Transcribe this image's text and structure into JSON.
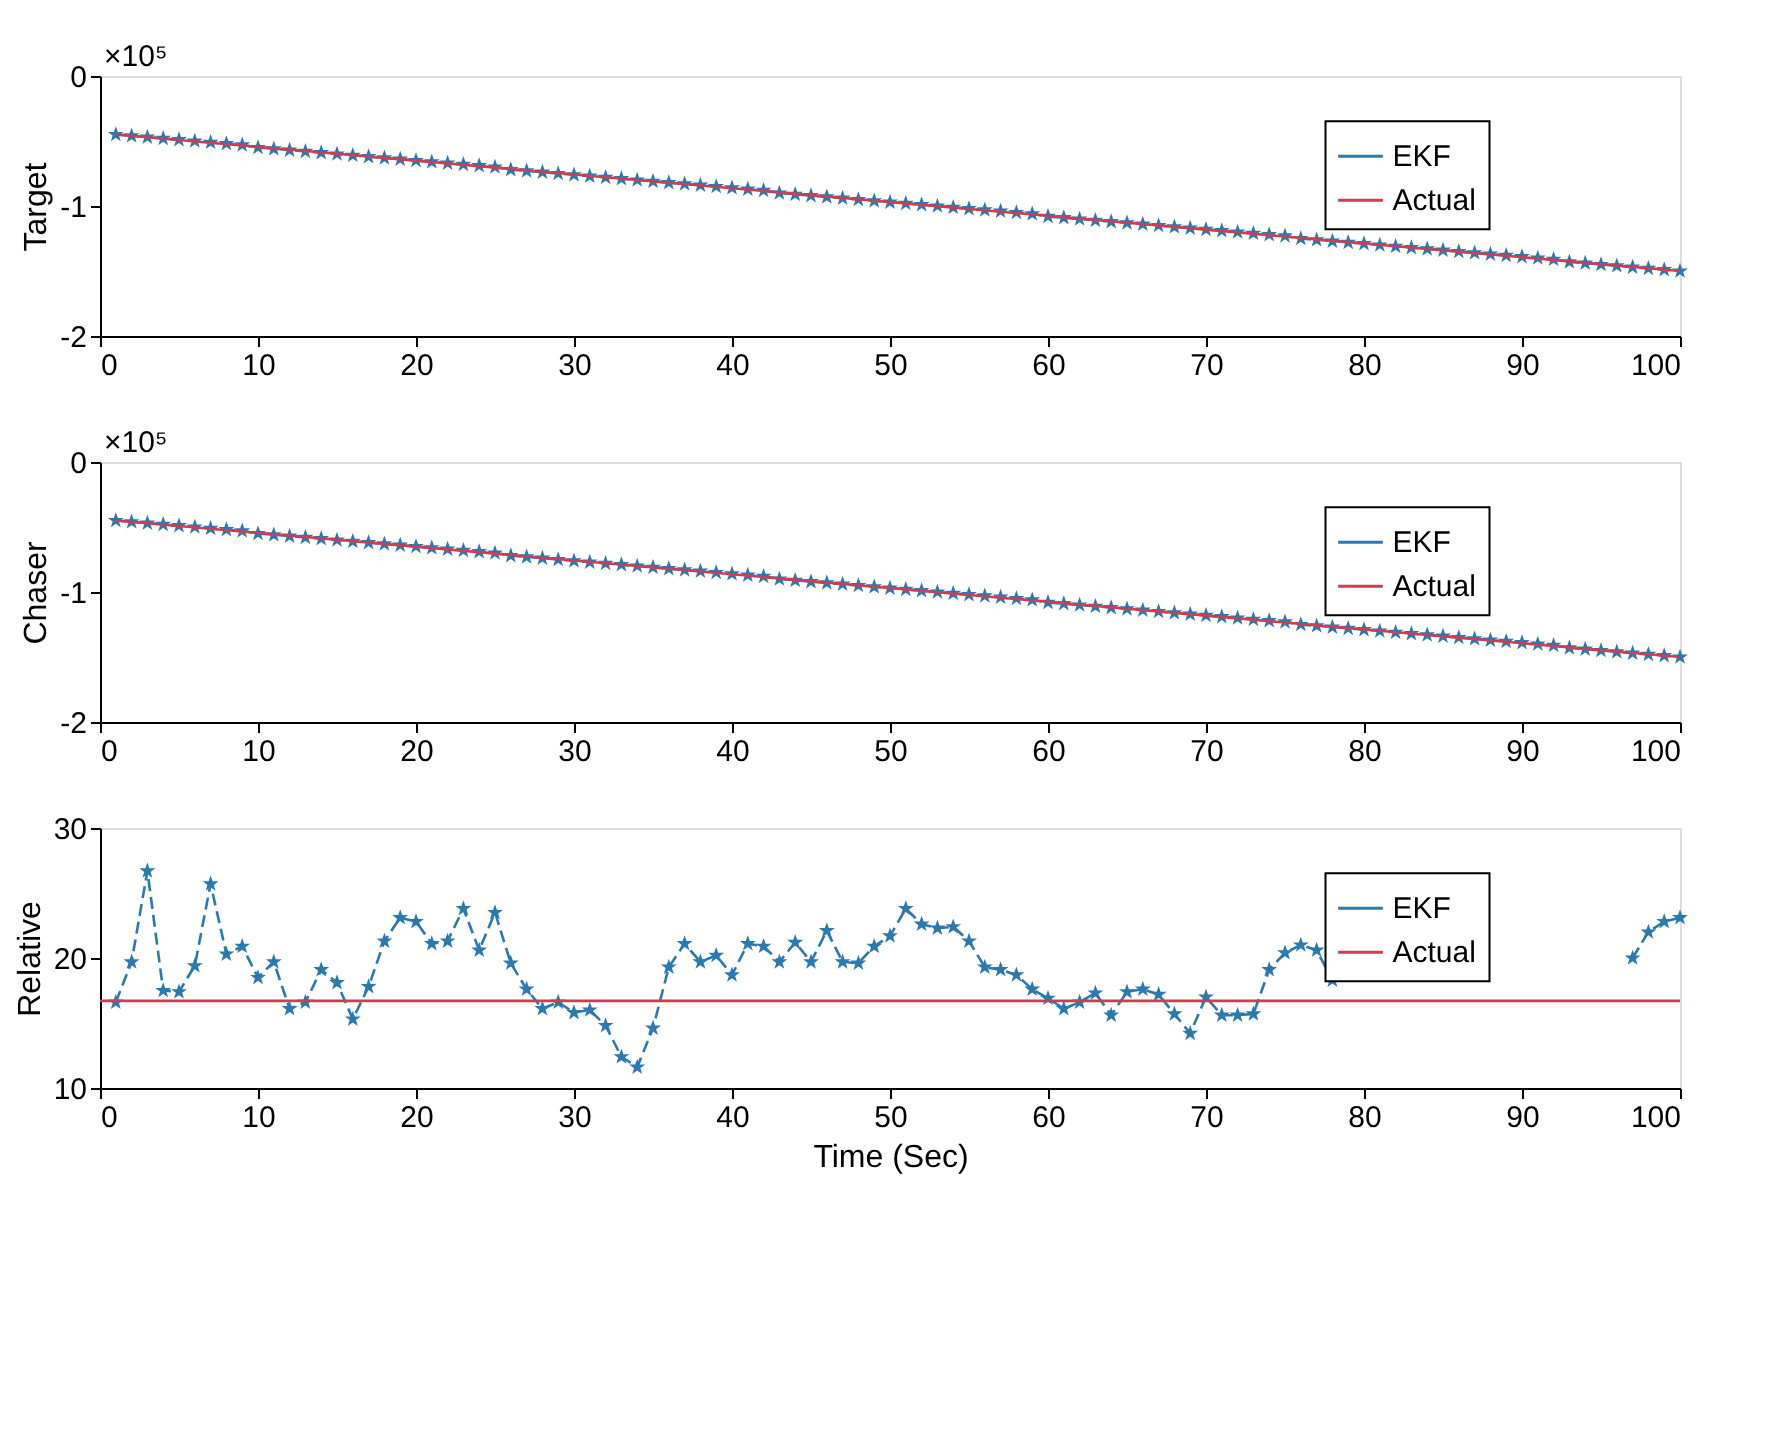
{
  "chart_data": [
    {
      "type": "line",
      "ylabel": "Target",
      "annotations": [
        "×10⁵"
      ],
      "xlim": [
        0,
        100
      ],
      "xticks": [
        0,
        10,
        20,
        30,
        40,
        50,
        60,
        70,
        80,
        90,
        100
      ],
      "ylim": [
        -2,
        0
      ],
      "yticks": [
        -2,
        -1,
        0
      ],
      "grid": false,
      "legend": "top right",
      "x": [
        1,
        2,
        3,
        4,
        5,
        6,
        7,
        8,
        9,
        10,
        11,
        12,
        13,
        14,
        15,
        16,
        17,
        18,
        19,
        20,
        21,
        22,
        23,
        24,
        25,
        26,
        27,
        28,
        29,
        30,
        31,
        32,
        33,
        34,
        35,
        36,
        37,
        38,
        39,
        40,
        41,
        42,
        43,
        44,
        45,
        46,
        47,
        48,
        49,
        50,
        51,
        52,
        53,
        54,
        55,
        56,
        57,
        58,
        59,
        60,
        61,
        62,
        63,
        64,
        65,
        66,
        67,
        68,
        69,
        70,
        71,
        72,
        73,
        74,
        75,
        76,
        77,
        78,
        79,
        80,
        81,
        82,
        83,
        84,
        85,
        86,
        87,
        88,
        89,
        90,
        91,
        92,
        93,
        94,
        95,
        96,
        97,
        98,
        99,
        100
      ],
      "series": [
        {
          "name": "EKF",
          "color": "#2a7ab0",
          "marker": "star",
          "line_style": "dashed",
          "values": [
            -0.45,
            -0.46,
            -0.47,
            -0.48,
            -0.49,
            -0.5,
            -0.51,
            -0.52,
            -0.53,
            -0.55,
            -0.56,
            -0.57,
            -0.58,
            -0.59,
            -0.6,
            -0.61,
            -0.62,
            -0.63,
            -0.64,
            -0.65,
            -0.66,
            -0.67,
            -0.68,
            -0.69,
            -0.7,
            -0.72,
            -0.73,
            -0.74,
            -0.75,
            -0.76,
            -0.77,
            -0.78,
            -0.79,
            -0.8,
            -0.81,
            -0.82,
            -0.83,
            -0.84,
            -0.85,
            -0.86,
            -0.87,
            -0.88,
            -0.9,
            -0.91,
            -0.92,
            -0.93,
            -0.94,
            -0.95,
            -0.96,
            -0.97,
            -0.98,
            -0.99,
            -1.0,
            -1.01,
            -1.02,
            -1.03,
            -1.04,
            -1.05,
            -1.06,
            -1.08,
            -1.09,
            -1.1,
            -1.11,
            -1.12,
            -1.13,
            -1.14,
            -1.15,
            -1.16,
            -1.17,
            -1.18,
            -1.19,
            -1.2,
            -1.21,
            -1.22,
            -1.23,
            -1.25,
            -1.26,
            -1.27,
            -1.28,
            -1.29,
            -1.3,
            -1.31,
            -1.32,
            -1.33,
            -1.34,
            -1.35,
            -1.36,
            -1.37,
            -1.38,
            -1.39,
            -1.4,
            -1.41,
            -1.43,
            -1.44,
            -1.45,
            -1.46,
            -1.47,
            -1.48,
            -1.49,
            -1.5
          ]
        },
        {
          "name": "Actual",
          "color": "#d43a50",
          "marker": "none",
          "line_style": "solid",
          "x": [
            1,
            100
          ],
          "values": [
            -0.45,
            -1.5
          ]
        }
      ]
    },
    {
      "type": "line",
      "ylabel": "Chaser",
      "annotations": [
        "×10⁵"
      ],
      "xlim": [
        0,
        100
      ],
      "xticks": [
        0,
        10,
        20,
        30,
        40,
        50,
        60,
        70,
        80,
        90,
        100
      ],
      "ylim": [
        -2,
        0
      ],
      "yticks": [
        -2,
        -1,
        0
      ],
      "grid": false,
      "legend": "top right",
      "x": [
        1,
        2,
        3,
        4,
        5,
        6,
        7,
        8,
        9,
        10,
        11,
        12,
        13,
        14,
        15,
        16,
        17,
        18,
        19,
        20,
        21,
        22,
        23,
        24,
        25,
        26,
        27,
        28,
        29,
        30,
        31,
        32,
        33,
        34,
        35,
        36,
        37,
        38,
        39,
        40,
        41,
        42,
        43,
        44,
        45,
        46,
        47,
        48,
        49,
        50,
        51,
        52,
        53,
        54,
        55,
        56,
        57,
        58,
        59,
        60,
        61,
        62,
        63,
        64,
        65,
        66,
        67,
        68,
        69,
        70,
        71,
        72,
        73,
        74,
        75,
        76,
        77,
        78,
        79,
        80,
        81,
        82,
        83,
        84,
        85,
        86,
        87,
        88,
        89,
        90,
        91,
        92,
        93,
        94,
        95,
        96,
        97,
        98,
        99,
        100
      ],
      "series": [
        {
          "name": "EKF",
          "color": "#2a7ab0",
          "marker": "star",
          "line_style": "dashed",
          "values": [
            -0.45,
            -0.46,
            -0.47,
            -0.48,
            -0.49,
            -0.5,
            -0.51,
            -0.52,
            -0.53,
            -0.55,
            -0.56,
            -0.57,
            -0.58,
            -0.59,
            -0.6,
            -0.61,
            -0.62,
            -0.63,
            -0.64,
            -0.65,
            -0.66,
            -0.67,
            -0.68,
            -0.69,
            -0.7,
            -0.72,
            -0.73,
            -0.74,
            -0.75,
            -0.76,
            -0.77,
            -0.78,
            -0.79,
            -0.8,
            -0.81,
            -0.82,
            -0.83,
            -0.84,
            -0.85,
            -0.86,
            -0.87,
            -0.88,
            -0.9,
            -0.91,
            -0.92,
            -0.93,
            -0.94,
            -0.95,
            -0.96,
            -0.97,
            -0.98,
            -0.99,
            -1.0,
            -1.01,
            -1.02,
            -1.03,
            -1.04,
            -1.05,
            -1.06,
            -1.08,
            -1.09,
            -1.1,
            -1.11,
            -1.12,
            -1.13,
            -1.14,
            -1.15,
            -1.16,
            -1.17,
            -1.18,
            -1.19,
            -1.2,
            -1.21,
            -1.22,
            -1.23,
            -1.25,
            -1.26,
            -1.27,
            -1.28,
            -1.29,
            -1.3,
            -1.31,
            -1.32,
            -1.33,
            -1.34,
            -1.35,
            -1.36,
            -1.37,
            -1.38,
            -1.39,
            -1.4,
            -1.41,
            -1.43,
            -1.44,
            -1.45,
            -1.46,
            -1.47,
            -1.48,
            -1.49,
            -1.5
          ]
        },
        {
          "name": "Actual",
          "color": "#d43a50",
          "marker": "none",
          "line_style": "solid",
          "x": [
            1,
            100
          ],
          "values": [
            -0.45,
            -1.5
          ]
        }
      ]
    },
    {
      "type": "line",
      "ylabel": "Relative",
      "xlabel": "Time (Sec)",
      "xlim": [
        0,
        100
      ],
      "xticks": [
        0,
        10,
        20,
        30,
        40,
        50,
        60,
        70,
        80,
        90,
        100
      ],
      "ylim": [
        10,
        30
      ],
      "yticks": [
        10,
        20,
        30
      ],
      "grid": false,
      "legend": "top right",
      "x": [
        1,
        2,
        3,
        4,
        5,
        6,
        7,
        8,
        9,
        10,
        11,
        12,
        13,
        14,
        15,
        16,
        17,
        18,
        19,
        20,
        21,
        22,
        23,
        24,
        25,
        26,
        27,
        28,
        29,
        30,
        31,
        32,
        33,
        34,
        35,
        36,
        37,
        38,
        39,
        40,
        41,
        42,
        43,
        44,
        45,
        46,
        47,
        48,
        49,
        50,
        51,
        52,
        53,
        54,
        55,
        56,
        57,
        58,
        59,
        60,
        61,
        62,
        63,
        64,
        65,
        66,
        67,
        68,
        69,
        70,
        71,
        72,
        73,
        74,
        75,
        76,
        77,
        78,
        79,
        80,
        81,
        82,
        83,
        84,
        85,
        86,
        87,
        88,
        89,
        90,
        91,
        92,
        93,
        94,
        95,
        96,
        97,
        98,
        99,
        100
      ],
      "series": [
        {
          "name": "EKF",
          "color": "#2a7ab0",
          "marker": "star",
          "line_style": "dashed",
          "values": [
            16.6,
            19.7,
            26.7,
            17.5,
            17.4,
            19.4,
            25.7,
            20.3,
            20.9,
            18.5,
            19.7,
            16.1,
            16.6,
            19.1,
            18.1,
            15.3,
            17.8,
            21.3,
            23.1,
            22.8,
            21.1,
            21.3,
            23.8,
            20.6,
            23.5,
            19.6,
            17.6,
            16.1,
            16.6,
            15.8,
            16.0,
            14.8,
            12.4,
            11.6,
            14.6,
            19.3,
            21.1,
            19.7,
            20.2,
            18.7,
            21.1,
            20.9,
            19.7,
            21.2,
            19.7,
            22.1,
            19.7,
            19.6,
            20.9,
            21.7,
            23.8,
            22.6,
            22.3,
            22.4,
            21.3,
            19.3,
            19.1,
            18.7,
            17.6,
            16.9,
            16.1,
            16.6,
            17.3,
            15.6,
            17.4,
            17.6,
            17.2,
            15.7,
            14.2,
            17.0,
            15.6,
            15.6,
            15.7,
            19.1,
            20.4,
            21.0,
            20.6,
            18.3,
            null,
            null,
            null,
            null,
            null,
            null,
            null,
            null,
            null,
            null,
            null,
            null,
            null,
            null,
            null,
            null,
            null,
            null,
            20.0,
            22.0,
            22.8,
            23.1
          ]
        },
        {
          "name": "Actual",
          "color": "#d43a50",
          "marker": "none",
          "line_style": "solid",
          "x": [
            0,
            100
          ],
          "values": [
            16.7,
            16.7
          ]
        }
      ]
    }
  ]
}
